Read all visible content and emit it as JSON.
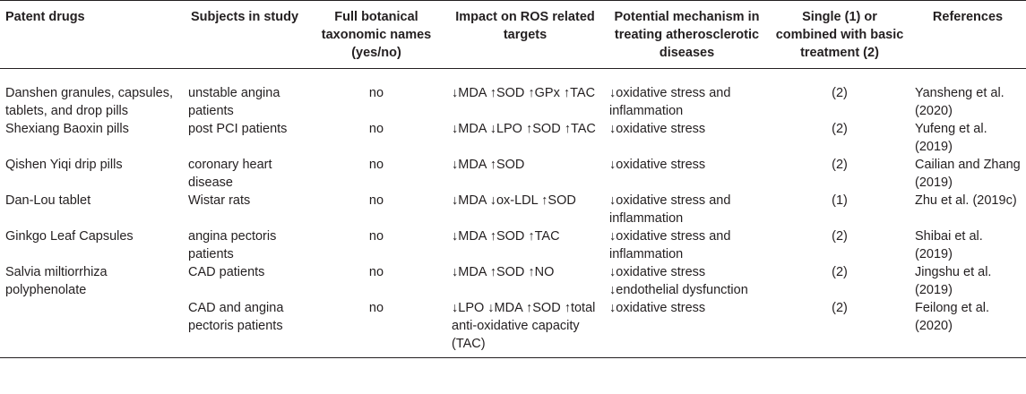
{
  "table": {
    "headers": [
      "Patent drugs",
      "Subjects in study",
      "Full botanical taxonomic names (yes/no)",
      "Impact on ROS related targets",
      "Potential mechanism in treating atherosclerotic diseases",
      "Single (1) or combined with basic treatment (2)",
      "References"
    ],
    "rows": [
      [
        "Danshen granules, capsules, tablets, and drop pills",
        "unstable angina patients",
        "no",
        "↓MDA ↑SOD ↑GPx ↑TAC",
        "↓oxidative stress and inflammation",
        "(2)",
        "Yansheng et al. (2020)"
      ],
      [
        "Shexiang Baoxin pills",
        "post PCI patients",
        "no",
        "↓MDA ↓LPO ↑SOD ↑TAC",
        "↓oxidative stress",
        "(2)",
        "Yufeng et al. (2019)"
      ],
      [
        "Qishen Yiqi drip pills",
        "coronary heart disease",
        "no",
        "↓MDA ↑SOD",
        "↓oxidative stress",
        "(2)",
        "Cailian and Zhang (2019)"
      ],
      [
        "Dan-Lou tablet",
        "Wistar rats",
        "no",
        "↓MDA ↓ox-LDL ↑SOD",
        "↓oxidative stress and inflammation",
        "(1)",
        "Zhu et al. (2019c)"
      ],
      [
        "Ginkgo Leaf Capsules",
        "angina pectoris patients",
        "no",
        "↓MDA ↑SOD ↑TAC",
        "↓oxidative stress and inflammation",
        "(2)",
        "Shibai et al. (2019)"
      ],
      [
        "Salvia miltiorrhiza polyphenolate",
        "CAD patients",
        "no",
        "↓MDA ↑SOD ↑NO",
        "↓oxidative stress ↓endothelial dysfunction",
        "(2)",
        "Jingshu et al. (2019)"
      ],
      [
        "",
        "CAD and angina pectoris patients",
        "no",
        "↓LPO ↓MDA ↑SOD ↑total anti-oxidative capacity (TAC)",
        "↓oxidative stress",
        "(2)",
        "Feilong et al. (2020)"
      ]
    ]
  }
}
